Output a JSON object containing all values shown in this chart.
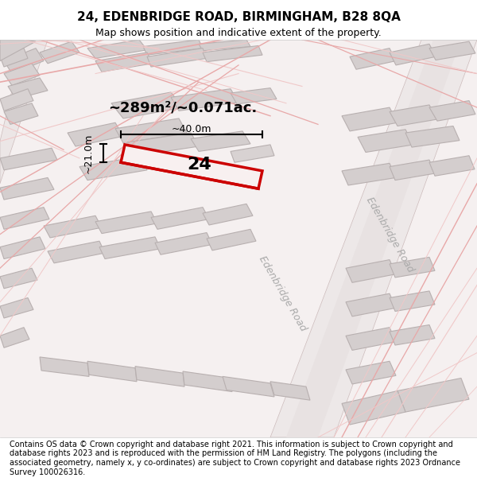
{
  "title_line1": "24, EDENBRIDGE ROAD, BIRMINGHAM, B28 8QA",
  "title_line2": "Map shows position and indicative extent of the property.",
  "footer_text": "Contains OS data © Crown copyright and database right 2021. This information is subject to Crown copyright and database rights 2023 and is reproduced with the permission of HM Land Registry. The polygons (including the associated geometry, namely x, y co-ordinates) are subject to Crown copyright and database rights 2023 Ordnance Survey 100026316.",
  "area_label": "~289m²/~0.071ac.",
  "width_label": "~40.0m",
  "height_label": "~21.0m",
  "house_number": "24",
  "bg_color": "#f5f0f0",
  "map_bg": "#f0eeee",
  "road_color_main": "#e8d8d8",
  "road_color_light": "#f0d0d0",
  "building_color": "#d8d4d4",
  "building_outline": "#c0b8b8",
  "highlight_color": "#cc0000",
  "highlight_fill": "#f5eeee",
  "road_label_color": "#aaaaaa",
  "title_fontsize": 11,
  "subtitle_fontsize": 9,
  "footer_fontsize": 7
}
